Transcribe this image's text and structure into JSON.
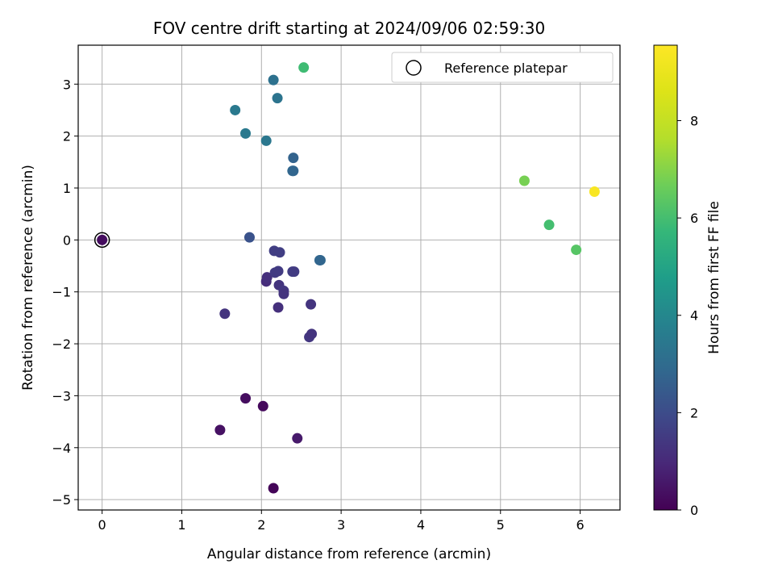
{
  "chart_data": {
    "type": "scatter",
    "title": "FOV centre drift starting at 2024/09/06 02:59:30",
    "xlabel": "Angular distance from reference (arcmin)",
    "ylabel": "Rotation from reference (arcmin)",
    "xlim": [
      -0.3,
      6.5
    ],
    "ylim": [
      -5.2,
      3.75
    ],
    "xticks": [
      0,
      1,
      2,
      3,
      4,
      5,
      6
    ],
    "yticks": [
      -5,
      -4,
      -3,
      -2,
      -1,
      0,
      1,
      2,
      3
    ],
    "grid": true,
    "legend": {
      "position": "top-right",
      "entries": [
        "Reference platepar"
      ]
    },
    "reference_point": {
      "x": 0,
      "y": 0,
      "label": "Reference platepar"
    },
    "colorbar": {
      "label": "Hours from first FF file",
      "range": [
        0,
        9.55
      ],
      "ticks": [
        0,
        2,
        4,
        6,
        8
      ],
      "colormap": "viridis"
    },
    "points": [
      {
        "x": 0.0,
        "y": 0.0,
        "hours": 0.3
      },
      {
        "x": 2.15,
        "y": -4.78,
        "hours": 0.1
      },
      {
        "x": 1.48,
        "y": -3.66,
        "hours": 0.4
      },
      {
        "x": 1.8,
        "y": -3.05,
        "hours": 0.3
      },
      {
        "x": 2.02,
        "y": -3.2,
        "hours": 0.2
      },
      {
        "x": 2.45,
        "y": -3.82,
        "hours": 0.6
      },
      {
        "x": 1.54,
        "y": -1.42,
        "hours": 1.3
      },
      {
        "x": 2.6,
        "y": -1.87,
        "hours": 1.4
      },
      {
        "x": 2.63,
        "y": -1.81,
        "hours": 1.3
      },
      {
        "x": 2.21,
        "y": -1.3,
        "hours": 1.2
      },
      {
        "x": 2.62,
        "y": -1.24,
        "hours": 1.3
      },
      {
        "x": 2.06,
        "y": -0.8,
        "hours": 1.1
      },
      {
        "x": 2.07,
        "y": -0.72,
        "hours": 1.2
      },
      {
        "x": 2.22,
        "y": -0.87,
        "hours": 1.3
      },
      {
        "x": 2.28,
        "y": -0.98,
        "hours": 1.4
      },
      {
        "x": 2.28,
        "y": -1.04,
        "hours": 1.3
      },
      {
        "x": 2.17,
        "y": -0.63,
        "hours": 1.5
      },
      {
        "x": 2.21,
        "y": -0.6,
        "hours": 1.5
      },
      {
        "x": 2.39,
        "y": -0.61,
        "hours": 1.6
      },
      {
        "x": 2.41,
        "y": -0.61,
        "hours": 1.5
      },
      {
        "x": 2.16,
        "y": -0.21,
        "hours": 1.6
      },
      {
        "x": 2.23,
        "y": -0.24,
        "hours": 1.6
      },
      {
        "x": 1.85,
        "y": 0.05,
        "hours": 2.2
      },
      {
        "x": 2.74,
        "y": -0.39,
        "hours": 2.9
      },
      {
        "x": 2.73,
        "y": -0.39,
        "hours": 2.8
      },
      {
        "x": 2.39,
        "y": 1.33,
        "hours": 2.9
      },
      {
        "x": 2.4,
        "y": 1.33,
        "hours": 2.8
      },
      {
        "x": 2.4,
        "y": 1.58,
        "hours": 2.7
      },
      {
        "x": 2.06,
        "y": 1.91,
        "hours": 3.4
      },
      {
        "x": 1.8,
        "y": 2.05,
        "hours": 3.5
      },
      {
        "x": 1.67,
        "y": 2.5,
        "hours": 3.5
      },
      {
        "x": 2.2,
        "y": 2.73,
        "hours": 3.3
      },
      {
        "x": 2.15,
        "y": 3.08,
        "hours": 3.2
      },
      {
        "x": 2.53,
        "y": 3.32,
        "hours": 5.9
      },
      {
        "x": 5.3,
        "y": 1.14,
        "hours": 6.8
      },
      {
        "x": 5.61,
        "y": 0.29,
        "hours": 6.0
      },
      {
        "x": 5.95,
        "y": -0.19,
        "hours": 6.3
      },
      {
        "x": 6.18,
        "y": 0.93,
        "hours": 9.4
      }
    ]
  }
}
